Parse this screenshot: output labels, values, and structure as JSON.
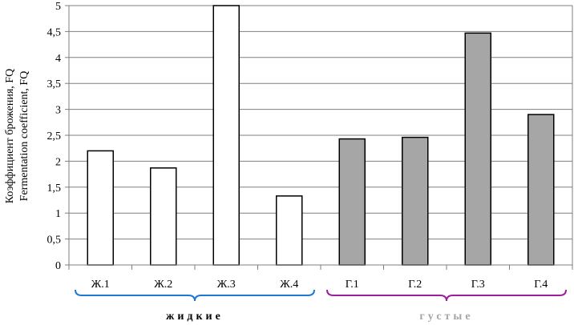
{
  "chart_data": {
    "type": "bar",
    "ylabel_lines": [
      "Коэффициент брожения, FQ",
      "Fermentation coefficient, FQ"
    ],
    "ylim": [
      0,
      5
    ],
    "yticks": [
      "0",
      "0,5",
      "1",
      "1,5",
      "2",
      "2,5",
      "3",
      "3,5",
      "4",
      "4,5",
      "5"
    ],
    "grid": true,
    "categories": [
      "Ж.1",
      "Ж.2",
      "Ж.3",
      "Ж.4",
      "Г.1",
      "Г.2",
      "Г.3",
      "Г.4"
    ],
    "values": [
      2.2,
      1.87,
      5.0,
      1.33,
      2.43,
      2.46,
      4.47,
      2.9
    ],
    "bar_fills": [
      "#ffffff",
      "#ffffff",
      "#ffffff",
      "#ffffff",
      "#a6a6a6",
      "#a6a6a6",
      "#a6a6a6",
      "#a6a6a6"
    ],
    "groups": [
      {
        "label": "жидкие",
        "from": 0,
        "to": 3,
        "color": "#1f77d4"
      },
      {
        "label": "густые",
        "from": 4,
        "to": 7,
        "color": "#9b1f9b"
      }
    ]
  }
}
